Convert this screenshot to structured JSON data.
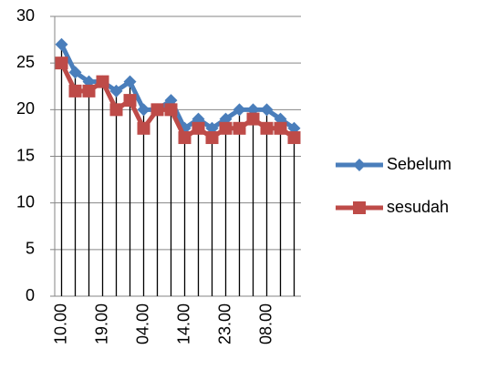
{
  "chart_data": {
    "type": "line",
    "categories": [
      "10.00",
      null,
      null,
      "19.00",
      null,
      null,
      "04.00",
      null,
      null,
      "14.00",
      null,
      null,
      "23.00",
      null,
      null,
      "08.00",
      null,
      null
    ],
    "series": [
      {
        "name": "Sebelum",
        "color": "#4a7ebb",
        "values": [
          27,
          24,
          23,
          23,
          22,
          23,
          20,
          20,
          21,
          18,
          19,
          18,
          19,
          20,
          20,
          20,
          19,
          18
        ]
      },
      {
        "name": "sesudah",
        "color": "#be4b48",
        "values": [
          25,
          22,
          22,
          23,
          20,
          21,
          18,
          20,
          20,
          17,
          18,
          17,
          18,
          18,
          19,
          18,
          18,
          17
        ]
      }
    ],
    "ylim": [
      0,
      30
    ],
    "yticks": [
      0,
      5,
      10,
      15,
      20,
      25,
      30
    ],
    "grid": true,
    "legend": "right"
  }
}
